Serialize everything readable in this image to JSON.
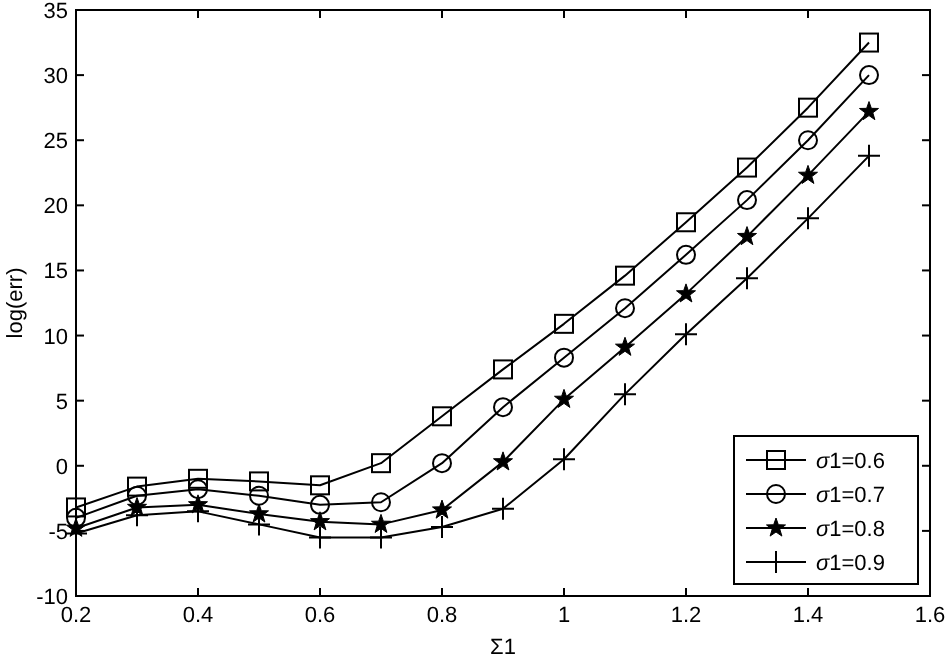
{
  "chart_data": {
    "type": "line",
    "xlabel": "Σ1",
    "ylabel": "log(err)",
    "xlim": [
      0.2,
      1.6
    ],
    "ylim": [
      -10,
      35
    ],
    "xticks": [
      0.2,
      0.4,
      0.6,
      0.8,
      1,
      1.2,
      1.4,
      1.6
    ],
    "yticks": [
      -10,
      -5,
      0,
      5,
      10,
      15,
      20,
      25,
      30,
      35
    ],
    "grid": false,
    "legend": "bottom right",
    "x": [
      0.2,
      0.3,
      0.4,
      0.5,
      0.6,
      0.7,
      0.8,
      0.9,
      1.0,
      1.1,
      1.2,
      1.3,
      1.4,
      1.5
    ],
    "series": [
      {
        "name": "σ1=0.6",
        "color": "#000000",
        "marker": "square",
        "values": [
          -3.2,
          -1.6,
          -1,
          -1.2,
          -1.5,
          0.2,
          3.8,
          7.4,
          10.9,
          14.6,
          18.7,
          22.9,
          27.5,
          32.5
        ]
      },
      {
        "name": "σ1=0.7",
        "color": "#000000",
        "marker": "circle",
        "values": [
          -4,
          -2.3,
          -1.8,
          -2.3,
          -3,
          -2.8,
          0.2,
          4.5,
          8.3,
          12.1,
          16.2,
          20.4,
          25,
          30
        ]
      },
      {
        "name": "σ1=0.8",
        "color": "#000000",
        "marker": "star",
        "values": [
          -4.8,
          -3.2,
          -3,
          -3.7,
          -4.3,
          -4.5,
          -3.4,
          0.3,
          5.1,
          9.1,
          13.2,
          17.6,
          22.3,
          27.2
        ]
      },
      {
        "name": "σ1=0.9",
        "color": "#000000",
        "marker": "cross",
        "values": [
          -5.2,
          -3.8,
          -3.5,
          -4.5,
          -5.5,
          -5.5,
          -4.7,
          -3.3,
          0.5,
          5.5,
          10.1,
          14.4,
          19,
          23.8
        ]
      }
    ]
  }
}
